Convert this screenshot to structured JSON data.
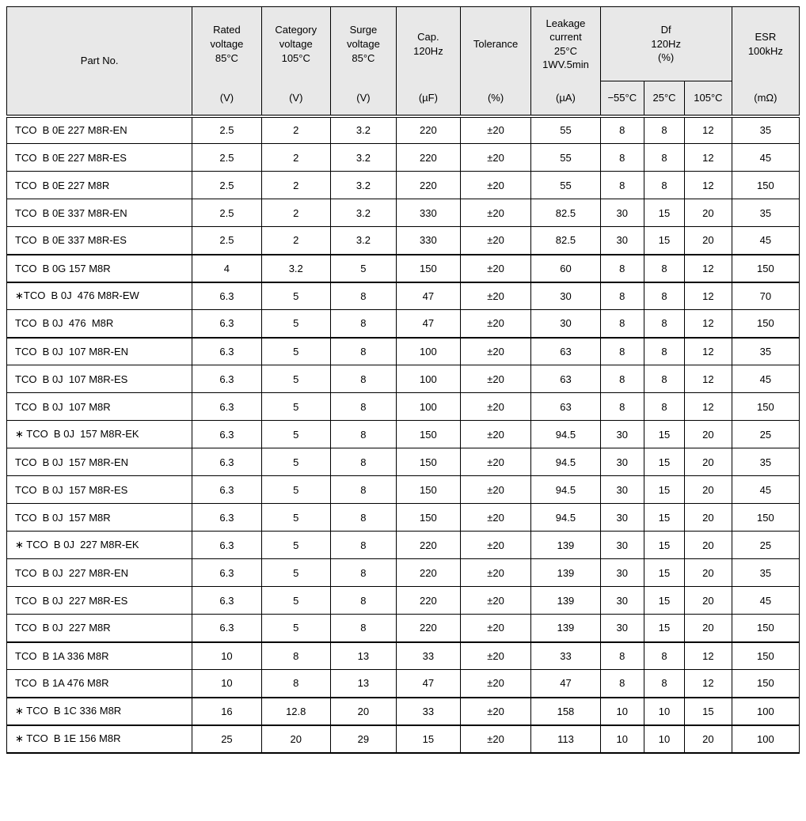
{
  "header": {
    "partno_top": "Part No.",
    "partno_unit": "",
    "rated_top": "Rated\nvoltage\n85°C",
    "rated_unit": "(V)",
    "category_top": "Category\nvoltage\n105°C",
    "category_unit": "(V)",
    "surge_top": "Surge\nvoltage\n85°C",
    "surge_unit": "(V)",
    "cap_top": "Cap.\n120Hz",
    "cap_unit": "(µF)",
    "tol_top": "Tolerance",
    "tol_unit": "(%)",
    "leak_top": "Leakage\ncurrent\n25°C\n1WV.5min",
    "leak_unit": "(µA)",
    "df_top": "Df\n120Hz\n(%)",
    "df_col1": "−55°C",
    "df_col2": "25°C",
    "df_col3": "105°C",
    "esr_top": "ESR\n100kHz",
    "esr_unit": "(mΩ)"
  },
  "rows": [
    {
      "part": "TCO  B 0E 227 M8R-EN",
      "rv": "2.5",
      "cv": "2",
      "sv": "3.2",
      "cap": "220",
      "tol": "±20",
      "leak": "55",
      "d1": "8",
      "d2": "8",
      "d3": "12",
      "esr": "35",
      "sep": 0
    },
    {
      "part": "TCO  B 0E 227 M8R-ES",
      "rv": "2.5",
      "cv": "2",
      "sv": "3.2",
      "cap": "220",
      "tol": "±20",
      "leak": "55",
      "d1": "8",
      "d2": "8",
      "d3": "12",
      "esr": "45",
      "sep": 0
    },
    {
      "part": "TCO  B 0E 227 M8R",
      "rv": "2.5",
      "cv": "2",
      "sv": "3.2",
      "cap": "220",
      "tol": "±20",
      "leak": "55",
      "d1": "8",
      "d2": "8",
      "d3": "12",
      "esr": "150",
      "sep": 0
    },
    {
      "part": "TCO  B 0E 337 M8R-EN",
      "rv": "2.5",
      "cv": "2",
      "sv": "3.2",
      "cap": "330",
      "tol": "±20",
      "leak": "82.5",
      "d1": "30",
      "d2": "15",
      "d3": "20",
      "esr": "35",
      "sep": 0
    },
    {
      "part": "TCO  B 0E 337 M8R-ES",
      "rv": "2.5",
      "cv": "2",
      "sv": "3.2",
      "cap": "330",
      "tol": "±20",
      "leak": "82.5",
      "d1": "30",
      "d2": "15",
      "d3": "20",
      "esr": "45",
      "sep": 1
    },
    {
      "part": "TCO  B 0G 157 M8R",
      "rv": "4",
      "cv": "3.2",
      "sv": "5",
      "cap": "150",
      "tol": "±20",
      "leak": "60",
      "d1": "8",
      "d2": "8",
      "d3": "12",
      "esr": "150",
      "sep": 1
    },
    {
      "part": "∗TCO  B 0J  476 M8R-EW",
      "rv": "6.3",
      "cv": "5",
      "sv": "8",
      "cap": "47",
      "tol": "±20",
      "leak": "30",
      "d1": "8",
      "d2": "8",
      "d3": "12",
      "esr": "70",
      "sep": 0
    },
    {
      "part": "TCO  B 0J  476  M8R",
      "rv": "6.3",
      "cv": "5",
      "sv": "8",
      "cap": "47",
      "tol": "±20",
      "leak": "30",
      "d1": "8",
      "d2": "8",
      "d3": "12",
      "esr": "150",
      "sep": 1
    },
    {
      "part": "TCO  B 0J  107 M8R-EN",
      "rv": "6.3",
      "cv": "5",
      "sv": "8",
      "cap": "100",
      "tol": "±20",
      "leak": "63",
      "d1": "8",
      "d2": "8",
      "d3": "12",
      "esr": "35",
      "sep": 0
    },
    {
      "part": "TCO  B 0J  107 M8R-ES",
      "rv": "6.3",
      "cv": "5",
      "sv": "8",
      "cap": "100",
      "tol": "±20",
      "leak": "63",
      "d1": "8",
      "d2": "8",
      "d3": "12",
      "esr": "45",
      "sep": 0
    },
    {
      "part": "TCO  B 0J  107 M8R",
      "rv": "6.3",
      "cv": "5",
      "sv": "8",
      "cap": "100",
      "tol": "±20",
      "leak": "63",
      "d1": "8",
      "d2": "8",
      "d3": "12",
      "esr": "150",
      "sep": 0
    },
    {
      "part": "∗ TCO  B 0J  157 M8R-EK",
      "rv": "6.3",
      "cv": "5",
      "sv": "8",
      "cap": "150",
      "tol": "±20",
      "leak": "94.5",
      "d1": "30",
      "d2": "15",
      "d3": "20",
      "esr": "25",
      "sep": 0
    },
    {
      "part": "TCO  B 0J  157 M8R-EN",
      "rv": "6.3",
      "cv": "5",
      "sv": "8",
      "cap": "150",
      "tol": "±20",
      "leak": "94.5",
      "d1": "30",
      "d2": "15",
      "d3": "20",
      "esr": "35",
      "sep": 0
    },
    {
      "part": "TCO  B 0J  157 M8R-ES",
      "rv": "6.3",
      "cv": "5",
      "sv": "8",
      "cap": "150",
      "tol": "±20",
      "leak": "94.5",
      "d1": "30",
      "d2": "15",
      "d3": "20",
      "esr": "45",
      "sep": 0
    },
    {
      "part": "TCO  B 0J  157 M8R",
      "rv": "6.3",
      "cv": "5",
      "sv": "8",
      "cap": "150",
      "tol": "±20",
      "leak": "94.5",
      "d1": "30",
      "d2": "15",
      "d3": "20",
      "esr": "150",
      "sep": 0
    },
    {
      "part": "∗ TCO  B 0J  227 M8R-EK",
      "rv": "6.3",
      "cv": "5",
      "sv": "8",
      "cap": "220",
      "tol": "±20",
      "leak": "139",
      "d1": "30",
      "d2": "15",
      "d3": "20",
      "esr": "25",
      "sep": 0
    },
    {
      "part": "TCO  B 0J  227 M8R-EN",
      "rv": "6.3",
      "cv": "5",
      "sv": "8",
      "cap": "220",
      "tol": "±20",
      "leak": "139",
      "d1": "30",
      "d2": "15",
      "d3": "20",
      "esr": "35",
      "sep": 0
    },
    {
      "part": "TCO  B 0J  227 M8R-ES",
      "rv": "6.3",
      "cv": "5",
      "sv": "8",
      "cap": "220",
      "tol": "±20",
      "leak": "139",
      "d1": "30",
      "d2": "15",
      "d3": "20",
      "esr": "45",
      "sep": 0
    },
    {
      "part": "TCO  B 0J  227 M8R",
      "rv": "6.3",
      "cv": "5",
      "sv": "8",
      "cap": "220",
      "tol": "±20",
      "leak": "139",
      "d1": "30",
      "d2": "15",
      "d3": "20",
      "esr": "150",
      "sep": 1
    },
    {
      "part": "TCO  B 1A 336 M8R",
      "rv": "10",
      "cv": "8",
      "sv": "13",
      "cap": "33",
      "tol": "±20",
      "leak": "33",
      "d1": "8",
      "d2": "8",
      "d3": "12",
      "esr": "150",
      "sep": 0
    },
    {
      "part": "TCO  B 1A 476 M8R",
      "rv": "10",
      "cv": "8",
      "sv": "13",
      "cap": "47",
      "tol": "±20",
      "leak": "47",
      "d1": "8",
      "d2": "8",
      "d3": "12",
      "esr": "150",
      "sep": 1
    },
    {
      "part": "∗ TCO  B 1C 336 M8R",
      "rv": "16",
      "cv": "12.8",
      "sv": "20",
      "cap": "33",
      "tol": "±20",
      "leak": "158",
      "d1": "10",
      "d2": "10",
      "d3": "15",
      "esr": "100",
      "sep": 1
    },
    {
      "part": "∗ TCO  B 1E 156 M8R",
      "rv": "25",
      "cv": "20",
      "sv": "29",
      "cap": "15",
      "tol": "±20",
      "leak": "113",
      "d1": "10",
      "d2": "10",
      "d3": "20",
      "esr": "100",
      "sep": 1
    }
  ]
}
